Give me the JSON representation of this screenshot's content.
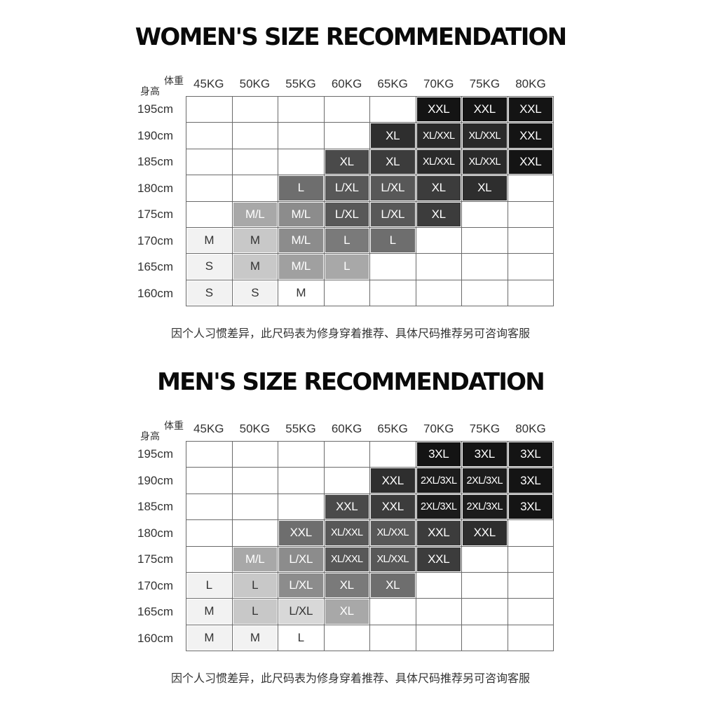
{
  "palette": {
    "S": "#f0f0f0",
    "M": "#f0f0f0",
    "M/L": "#9b9b9b",
    "L": "#a0a0a0",
    "L/XL": "#585858",
    "XL": "#3c3c3c",
    "XL/XXL": "#2e2e2e",
    "XXL": "#141414",
    "2XL/3XL": "#1c1c1c",
    "3XL": "#0e0e0e"
  },
  "charts": [
    {
      "id": "women",
      "title": "WOMEN'S SIZE RECOMMENDATION",
      "weight_label": "体重",
      "height_label": "身高",
      "weights": [
        "45KG",
        "50KG",
        "55KG",
        "60KG",
        "65KG",
        "70KG",
        "75KG",
        "80KG"
      ],
      "heights": [
        "195cm",
        "190cm",
        "185cm",
        "180cm",
        "175cm",
        "170cm",
        "165cm",
        "160cm"
      ],
      "rows": [
        [
          "",
          "",
          "",
          "",
          "",
          "XXL",
          "XXL",
          "XXL"
        ],
        [
          "",
          "",
          "",
          "",
          "XL",
          "XL/XXL",
          "XL/XXL",
          "XXL"
        ],
        [
          "",
          "",
          "",
          "XL",
          "XL",
          "XL/XXL",
          "XL/XXL",
          "XXL"
        ],
        [
          "",
          "",
          "L",
          "L/XL",
          "L/XL",
          "XL",
          "XL",
          ""
        ],
        [
          "",
          "M/L",
          "M/L",
          "L/XL",
          "L/XL",
          "XL",
          "",
          ""
        ],
        [
          "M",
          "M",
          "M/L",
          "L",
          "L",
          "",
          "",
          ""
        ],
        [
          "S",
          "M",
          "M/L",
          "L",
          "",
          "",
          "",
          ""
        ],
        [
          "S",
          "S",
          "M",
          "",
          "",
          "",
          "",
          ""
        ]
      ],
      "shades": [
        [
          "",
          "",
          "",
          "",
          "",
          "#141414",
          "#141414",
          "#141414"
        ],
        [
          "",
          "",
          "",
          "",
          "#2e2e2e",
          "#2a2a2a",
          "#2a2a2a",
          "#141414"
        ],
        [
          "",
          "",
          "",
          "#4a4a4a",
          "#3c3c3c",
          "#2a2a2a",
          "#2a2a2a",
          "#141414"
        ],
        [
          "",
          "",
          "#6e6e6e",
          "#585858",
          "#585858",
          "#3c3c3c",
          "#2e2e2e",
          ""
        ],
        [
          "",
          "#a8a8a8",
          "#8c8c8c",
          "#585858",
          "#585858",
          "#3c3c3c",
          "",
          ""
        ],
        [
          "#f2f2f2",
          "#c8c8c8",
          "#8c8c8c",
          "#7a7a7a",
          "#6e6e6e",
          "",
          "",
          ""
        ],
        [
          "#f2f2f2",
          "#c8c8c8",
          "#a0a0a0",
          "#a8a8a8",
          "",
          "",
          "",
          ""
        ],
        [
          "#f2f2f2",
          "#f2f2f2",
          "#ffffff",
          "",
          "",
          "",
          "",
          ""
        ]
      ],
      "note": "因个人习惯差异，此尺码表为修身穿着推荐、具体尺码推荐另可咨询客服"
    },
    {
      "id": "men",
      "title": "MEN'S SIZE RECOMMENDATION",
      "weight_label": "体重",
      "height_label": "身高",
      "weights": [
        "45KG",
        "50KG",
        "55KG",
        "60KG",
        "65KG",
        "70KG",
        "75KG",
        "80KG"
      ],
      "heights": [
        "195cm",
        "190cm",
        "185cm",
        "180cm",
        "175cm",
        "170cm",
        "165cm",
        "160cm"
      ],
      "rows": [
        [
          "",
          "",
          "",
          "",
          "",
          "3XL",
          "3XL",
          "3XL"
        ],
        [
          "",
          "",
          "",
          "",
          "XXL",
          "2XL/3XL",
          "2XL/3XL",
          "3XL"
        ],
        [
          "",
          "",
          "",
          "XXL",
          "XXL",
          "2XL/3XL",
          "2XL/3XL",
          "3XL"
        ],
        [
          "",
          "",
          "XXL",
          "XL/XXL",
          "XL/XXL",
          "XXL",
          "XXL",
          ""
        ],
        [
          "",
          "M/L",
          "L/XL",
          "XL/XXL",
          "XL/XXL",
          "XXL",
          "",
          ""
        ],
        [
          "L",
          "L",
          "L/XL",
          "XL",
          "XL",
          "",
          "",
          ""
        ],
        [
          "M",
          "L",
          "L/XL",
          "XL",
          "",
          "",
          "",
          ""
        ],
        [
          "M",
          "M",
          "L",
          "",
          "",
          "",
          "",
          ""
        ]
      ],
      "shades": [
        [
          "",
          "",
          "",
          "",
          "",
          "#141414",
          "#141414",
          "#141414"
        ],
        [
          "",
          "",
          "",
          "",
          "#2e2e2e",
          "#1c1c1c",
          "#1c1c1c",
          "#141414"
        ],
        [
          "",
          "",
          "",
          "#4a4a4a",
          "#3c3c3c",
          "#1c1c1c",
          "#1c1c1c",
          "#141414"
        ],
        [
          "",
          "",
          "#6e6e6e",
          "#585858",
          "#585858",
          "#3c3c3c",
          "#2e2e2e",
          ""
        ],
        [
          "",
          "#a8a8a8",
          "#8c8c8c",
          "#585858",
          "#585858",
          "#3c3c3c",
          "",
          ""
        ],
        [
          "#f2f2f2",
          "#c8c8c8",
          "#8c8c8c",
          "#7a7a7a",
          "#6e6e6e",
          "",
          "",
          ""
        ],
        [
          "#f2f2f2",
          "#c8c8c8",
          "#d8d8d8",
          "#a8a8a8",
          "",
          "",
          "",
          ""
        ],
        [
          "#f2f2f2",
          "#f2f2f2",
          "#ffffff",
          "",
          "",
          "",
          "",
          ""
        ]
      ],
      "note": "因个人习惯差异，此尺码表为修身穿着推荐、具体尺码推荐另可咨询客服"
    }
  ]
}
